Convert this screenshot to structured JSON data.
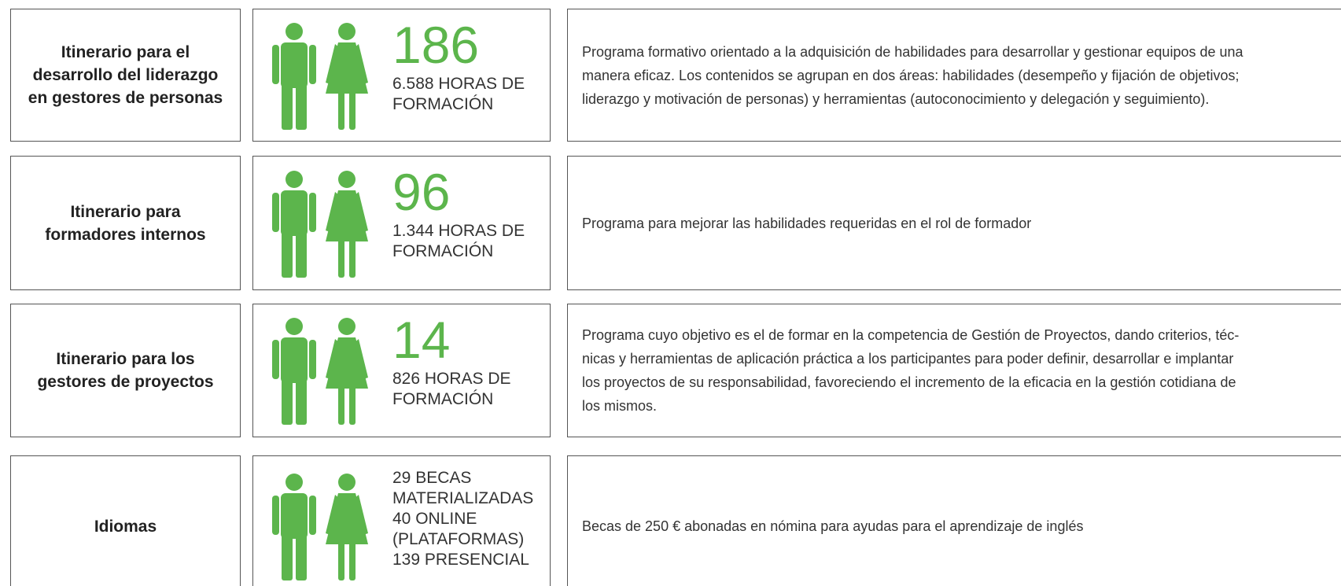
{
  "rows": [
    {
      "title": [
        "Itinerario para el",
        "desarrollo del liderazgo",
        "en gestores de personas"
      ],
      "count": 186,
      "stats": [
        "6.588 HORAS DE",
        "FORMACIÓN"
      ],
      "description": [
        "Programa formativo orientado a la adquisición de habilidades para desarrollar y gestionar equipos de una",
        "manera eficaz. Los contenidos se agrupan en dos áreas: habilidades (desempeño y fijación de objetivos;",
        "liderazgo y motivación de personas) y herramientas (autoconocimiento y delegación y seguimiento)."
      ]
    },
    {
      "title": [
        "Itinerario para",
        "formadores internos"
      ],
      "count": 96,
      "stats": [
        "1.344 HORAS DE",
        "FORMACIÓN"
      ],
      "description": [
        "Programa para mejorar las habilidades requeridas en el rol de formador"
      ]
    },
    {
      "title": [
        "Itinerario para los",
        "gestores de proyectos"
      ],
      "count": 14,
      "stats": [
        "826 HORAS DE",
        "FORMACIÓN"
      ],
      "description": [
        "Programa cuyo objetivo es el de formar en la competencia de Gestión de Proyectos, dando criterios, téc-",
        "nicas y herramientas de aplicación práctica a los participantes para poder definir, desarrollar e implantar",
        "los proyectos de su responsabilidad, favoreciendo el incremento de la eficacia en la gestión cotidiana de",
        "los mismos."
      ]
    },
    {
      "title": [
        "Idiomas"
      ],
      "stats": [
        "29 BECAS",
        "MATERIALIZADAS",
        "40 ONLINE",
        "(PLATAFORMAS)",
        "139 PRESENCIAL"
      ],
      "description": [
        "Becas de 250 € abonadas en nómina para ayudas para el aprendizaje de inglés"
      ]
    }
  ]
}
